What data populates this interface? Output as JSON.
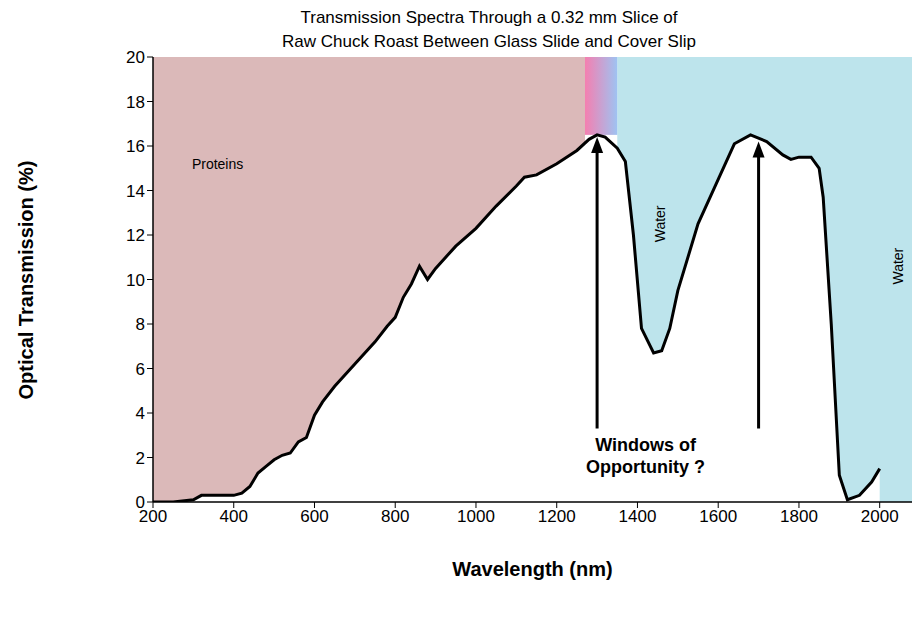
{
  "chart_data": {
    "type": "line",
    "title": "Transmission Spectra Through a 0.32 mm Slice of Raw Chuck Roast Between Glass Slide and Cover Slip",
    "x_label": "Wavelength (nm)",
    "y_label": "Optical Transmission (%)",
    "x": [
      200,
      250,
      300,
      320,
      350,
      400,
      420,
      440,
      460,
      480,
      500,
      520,
      540,
      560,
      580,
      600,
      620,
      650,
      700,
      750,
      780,
      800,
      820,
      840,
      860,
      880,
      900,
      950,
      1000,
      1050,
      1100,
      1120,
      1150,
      1200,
      1250,
      1280,
      1300,
      1320,
      1350,
      1370,
      1390,
      1410,
      1440,
      1460,
      1480,
      1500,
      1550,
      1600,
      1640,
      1680,
      1720,
      1760,
      1780,
      1800,
      1830,
      1850,
      1860,
      1880,
      1900,
      1920,
      1950,
      1980,
      2000
    ],
    "values": [
      0,
      0,
      0.1,
      0.3,
      0.3,
      0.3,
      0.4,
      0.7,
      1.3,
      1.6,
      1.9,
      2.1,
      2.2,
      2.7,
      2.9,
      3.9,
      4.5,
      5.2,
      6.2,
      7.2,
      7.9,
      8.3,
      9.2,
      9.8,
      10.6,
      10.0,
      10.5,
      11.5,
      12.3,
      13.3,
      14.2,
      14.6,
      14.7,
      15.2,
      15.8,
      16.3,
      16.5,
      16.4,
      15.9,
      15.3,
      12.0,
      7.8,
      6.7,
      6.8,
      7.8,
      9.5,
      12.5,
      14.5,
      16.1,
      16.5,
      16.2,
      15.6,
      15.4,
      15.5,
      15.5,
      15.0,
      13.7,
      8.0,
      1.2,
      0.1,
      0.3,
      0.9,
      1.5
    ],
    "color": "#000000",
    "xlim": [
      200,
      2080
    ],
    "xticks": [
      200,
      400,
      600,
      800,
      1000,
      1200,
      1400,
      1600,
      1800,
      2000
    ],
    "ylim": [
      0,
      20
    ],
    "yticks": [
      0,
      2,
      4,
      6,
      8,
      10,
      12,
      14,
      16,
      18,
      20
    ],
    "grid": false,
    "regions": [
      {
        "name": "Proteins",
        "x": [
          200,
          1270
        ],
        "color": "#dbb9b9",
        "label_at": [
          [
            360,
            15.2
          ]
        ]
      },
      {
        "name": "Water",
        "x": [
          1350,
          2080
        ],
        "color": "#bde4ec",
        "label_at": [
          [
            1455,
            12.5
          ],
          [
            2045,
            10.6
          ]
        ]
      },
      {
        "x": [
          1270,
          1350
        ],
        "y": [
          16.5,
          20
        ],
        "colors": [
          "#f47fb0",
          "#9ec3f2"
        ]
      }
    ],
    "annotations": [
      {
        "text": "Windows of Opportunity ?",
        "x": 1420,
        "y": 2.3,
        "arrows": [
          {
            "x": 1300,
            "y": [
              3.3,
              16.4
            ]
          },
          {
            "x": 1700,
            "y": [
              3.3,
              16.2
            ]
          }
        ]
      }
    ]
  }
}
